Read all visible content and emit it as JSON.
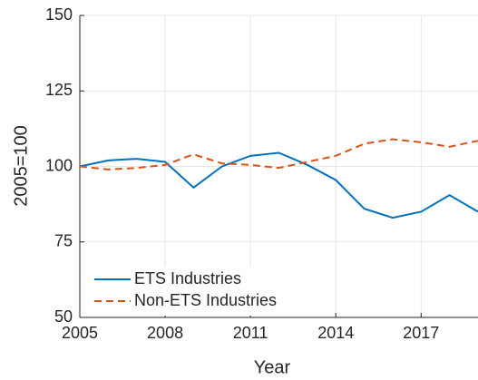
{
  "chart_data": {
    "type": "line",
    "x_label": "Year",
    "y_label": "2005=100",
    "x": [
      2005,
      2006,
      2007,
      2008,
      2009,
      2010,
      2011,
      2012,
      2013,
      2014,
      2015,
      2016,
      2017,
      2018,
      2019
    ],
    "series": [
      {
        "name": "ETS Industries",
        "color": "#0072bd",
        "line_style": "solid",
        "values": [
          100,
          102,
          102.5,
          101.5,
          93,
          100,
          103.5,
          104.5,
          100.5,
          95.5,
          86,
          83,
          85,
          90.5,
          85
        ]
      },
      {
        "name": "Non-ETS Industries",
        "color": "#d95319",
        "line_style": "dashed",
        "values": [
          100,
          99,
          99.5,
          100.5,
          104,
          101,
          100.5,
          99.5,
          101.5,
          103.5,
          107.5,
          109,
          108,
          106.5,
          108.5
        ]
      }
    ],
    "xlim": [
      2005,
      2019
    ],
    "xticks": [
      2005,
      2008,
      2011,
      2014,
      2017
    ],
    "ylim": [
      50,
      150
    ],
    "yticks": [
      50,
      75,
      100,
      125,
      150
    ],
    "grid": true,
    "legend_position": "lower-left"
  }
}
